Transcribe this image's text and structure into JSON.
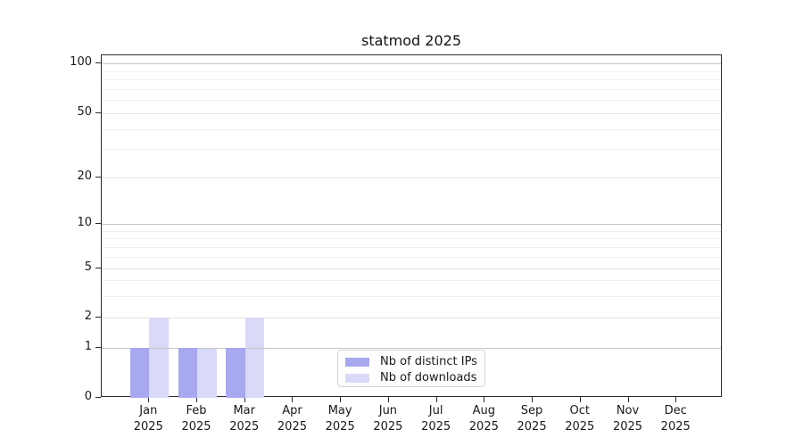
{
  "chart_data": {
    "type": "bar",
    "title": "statmod 2025",
    "categories": [
      "Jan",
      "Feb",
      "Mar",
      "Apr",
      "May",
      "Jun",
      "Jul",
      "Aug",
      "Sep",
      "Oct",
      "Nov",
      "Dec"
    ],
    "category_year": "2025",
    "series": [
      {
        "name": "Nb of distinct IPs",
        "color": "#a8a8f0",
        "values": [
          1,
          1,
          1,
          0,
          0,
          0,
          0,
          0,
          0,
          0,
          0,
          0
        ]
      },
      {
        "name": "Nb of downloads",
        "color": "#d9d9f8",
        "values": [
          2,
          1,
          2,
          0,
          0,
          0,
          0,
          0,
          0,
          0,
          0,
          0
        ]
      }
    ],
    "y_axis": {
      "scale": "log-like",
      "ticks": [
        0,
        1,
        2,
        5,
        10,
        20,
        50,
        100
      ],
      "major_gridlines": [
        1,
        10,
        100
      ],
      "sub_gridlines": [
        2,
        5,
        20,
        50
      ],
      "minor_gridlines": [
        3,
        4,
        6,
        7,
        8,
        9,
        30,
        40,
        60,
        70,
        80,
        90
      ],
      "range": [
        0,
        110
      ]
    },
    "legend": {
      "position": "bottom-center"
    },
    "grid": true
  },
  "colors": {
    "axis": "#2b2b2b",
    "major_grid": "#c6c6c6",
    "minor_grid": "#efefef",
    "background": "#ffffff"
  }
}
